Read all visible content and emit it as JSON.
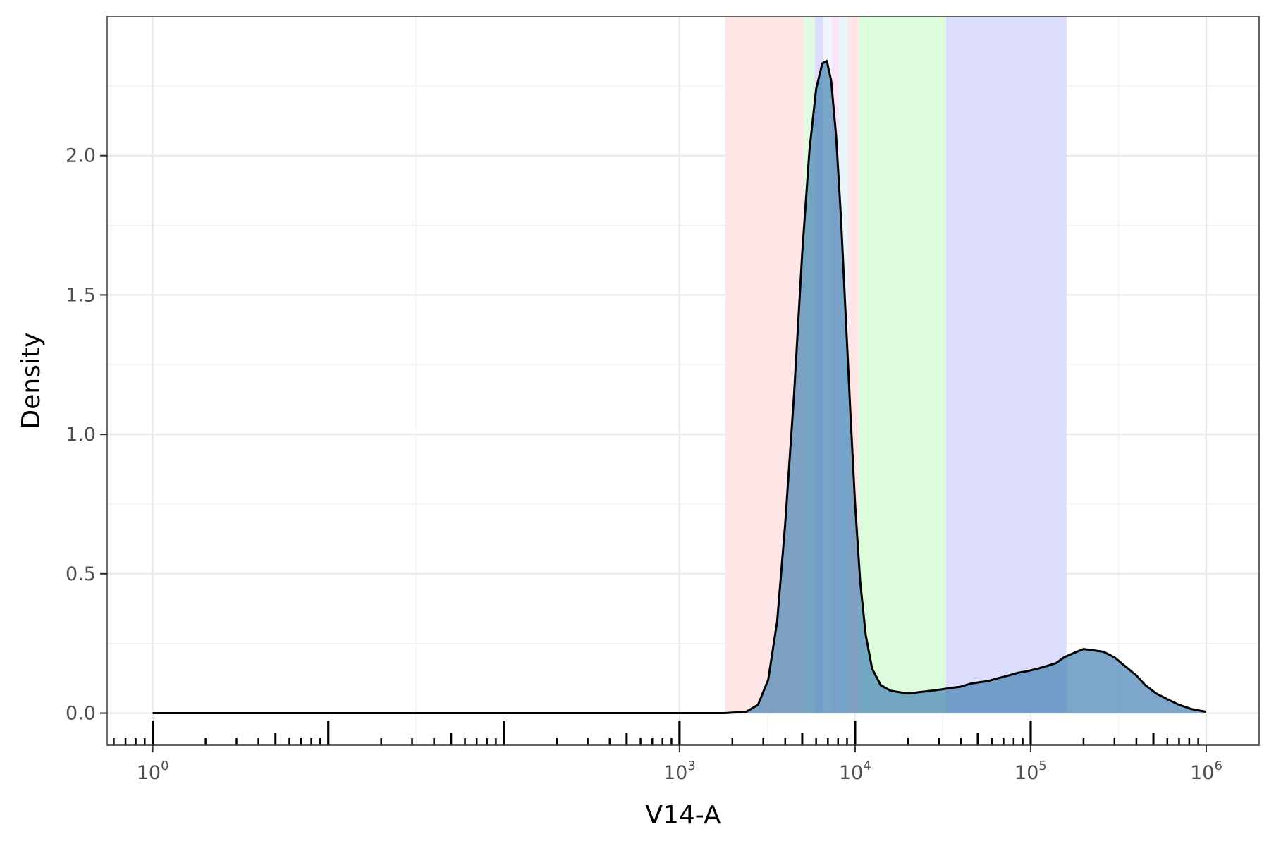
{
  "chart_data": {
    "type": "area",
    "title": "",
    "xlabel": "V14-A",
    "ylabel": "Density",
    "x_scale": "log10",
    "xlim": [
      0.55,
      2000000
    ],
    "ylim": [
      -0.115,
      2.5
    ],
    "grid": true,
    "legend": "none",
    "x_ticks": [
      {
        "base": "10",
        "exp": "0",
        "value": 1
      },
      {
        "base": "10",
        "exp": "3",
        "value": 1000
      },
      {
        "base": "10",
        "exp": "4",
        "value": 10000
      },
      {
        "base": "10",
        "exp": "5",
        "value": 100000
      },
      {
        "base": "10",
        "exp": "6",
        "value": 1000000
      }
    ],
    "y_ticks": [
      {
        "label": "0.0",
        "value": 0.0
      },
      {
        "label": "0.5",
        "value": 0.5
      },
      {
        "label": "1.0",
        "value": 1.0
      },
      {
        "label": "1.5",
        "value": 1.5
      },
      {
        "label": "2.0",
        "value": 2.0
      }
    ],
    "gates": [
      {
        "x0": 1820,
        "x1": 5100,
        "color": "#ffe6e6"
      },
      {
        "x0": 5100,
        "x1": 5900,
        "color": "#e2f9e2"
      },
      {
        "x0": 5900,
        "x1": 6600,
        "color": "#dcddfc"
      },
      {
        "x0": 6600,
        "x1": 7400,
        "color": "#f0f7fc"
      },
      {
        "x0": 7400,
        "x1": 8100,
        "color": "#f9e4fb"
      },
      {
        "x0": 8100,
        "x1": 9100,
        "color": "#e8f6fc"
      },
      {
        "x0": 9100,
        "x1": 10500,
        "color": "#ffe6e6"
      },
      {
        "x0": 10500,
        "x1": 33000,
        "color": "#dcfcdc"
      },
      {
        "x0": 33000,
        "x1": 160000,
        "color": "#dcddfc"
      }
    ],
    "series": [
      {
        "fill": "#4682b4",
        "line": "#000000",
        "points": [
          [
            1,
            0
          ],
          [
            1800,
            0
          ],
          [
            2400,
            0.005
          ],
          [
            2800,
            0.03
          ],
          [
            3200,
            0.12
          ],
          [
            3600,
            0.33
          ],
          [
            4000,
            0.68
          ],
          [
            4500,
            1.15
          ],
          [
            5000,
            1.65
          ],
          [
            5500,
            2.02
          ],
          [
            6000,
            2.24
          ],
          [
            6500,
            2.33
          ],
          [
            6900,
            2.34
          ],
          [
            7300,
            2.27
          ],
          [
            7800,
            2.07
          ],
          [
            8300,
            1.78
          ],
          [
            8800,
            1.45
          ],
          [
            9400,
            1.08
          ],
          [
            10000,
            0.75
          ],
          [
            10700,
            0.47
          ],
          [
            11500,
            0.28
          ],
          [
            12500,
            0.16
          ],
          [
            14000,
            0.1
          ],
          [
            16000,
            0.08
          ],
          [
            18000,
            0.075
          ],
          [
            20000,
            0.07
          ],
          [
            23000,
            0.075
          ],
          [
            27000,
            0.08
          ],
          [
            31000,
            0.085
          ],
          [
            35000,
            0.09
          ],
          [
            40000,
            0.095
          ],
          [
            45000,
            0.105
          ],
          [
            50000,
            0.11
          ],
          [
            57000,
            0.115
          ],
          [
            65000,
            0.125
          ],
          [
            75000,
            0.135
          ],
          [
            85000,
            0.145
          ],
          [
            95000,
            0.15
          ],
          [
            110000,
            0.16
          ],
          [
            125000,
            0.17
          ],
          [
            140000,
            0.18
          ],
          [
            155000,
            0.2
          ],
          [
            175000,
            0.215
          ],
          [
            200000,
            0.23
          ],
          [
            230000,
            0.225
          ],
          [
            260000,
            0.22
          ],
          [
            300000,
            0.2
          ],
          [
            350000,
            0.165
          ],
          [
            400000,
            0.135
          ],
          [
            450000,
            0.1
          ],
          [
            520000,
            0.07
          ],
          [
            600000,
            0.05
          ],
          [
            700000,
            0.03
          ],
          [
            820000,
            0.015
          ],
          [
            1000000,
            0.005
          ]
        ]
      }
    ]
  }
}
